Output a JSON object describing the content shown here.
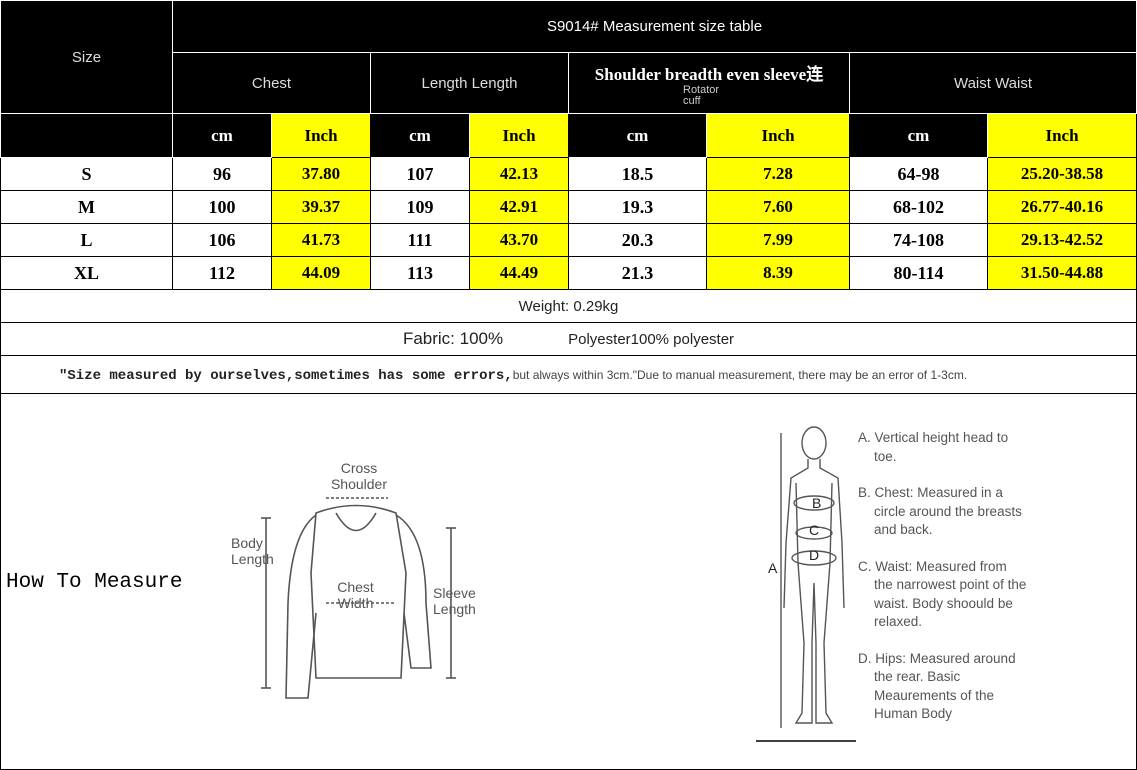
{
  "title": "S9014# Measurement size table",
  "size_label": "Size",
  "groups": {
    "chest": "Chest",
    "length": "Length Length",
    "shoulder": "Shoulder breadth even sleeve连",
    "shoulder_sub": "Rotator cuff",
    "waist": "Waist Waist"
  },
  "units": {
    "cm": "cm",
    "inch": "Inch"
  },
  "rows": [
    {
      "size": "S",
      "c1": "96",
      "c2": "37.80",
      "l1": "107",
      "l2": "42.13",
      "s1": "18.5",
      "s2": "7.28",
      "w1": "64-98",
      "w2": "25.20-38.58"
    },
    {
      "size": "M",
      "c1": "100",
      "c2": "39.37",
      "l1": "109",
      "l2": "42.91",
      "s1": "19.3",
      "s2": "7.60",
      "w1": "68-102",
      "w2": "26.77-40.16"
    },
    {
      "size": "L",
      "c1": "106",
      "c2": "41.73",
      "l1": "111",
      "l2": "43.70",
      "s1": "20.3",
      "s2": "7.99",
      "w1": "74-108",
      "w2": "29.13-42.52"
    },
    {
      "size": "XL",
      "c1": "112",
      "c2": "44.09",
      "l1": "113",
      "l2": "44.49",
      "s1": "21.3",
      "s2": "8.39",
      "w1": "80-114",
      "w2": "31.50-44.88"
    }
  ],
  "weight": "Weight: 0.29kg",
  "fabric_a": "Fabric: 100%",
  "fabric_b": "Polyester100% polyester",
  "note_a": "\"Size measured by ourselves,sometimes has some errors,",
  "note_b": "but always within 3cm.\"Due to manual measurement, there may be an error of 1-3cm.",
  "how_to": "How To Measure",
  "garment_labels": {
    "cross": "Cross Shoulder",
    "body": "Body Length",
    "chest": "Chest Width",
    "sleeve": "Sleeve Length"
  },
  "body_labels": {
    "a": "A",
    "b": "B",
    "c": "C",
    "d": "D"
  },
  "legend": [
    "A. Vertical height head to toe.",
    "B. Chest: Measured in a circle around the breasts and back.",
    "C. Waist: Measured from the narrowest point of the waist. Body shoould be relaxed.",
    "D. Hips: Measured around the rear. Basic Meaurements of the Human Body"
  ],
  "colors": {
    "header_bg": "#000000",
    "highlight": "#ffff00"
  }
}
